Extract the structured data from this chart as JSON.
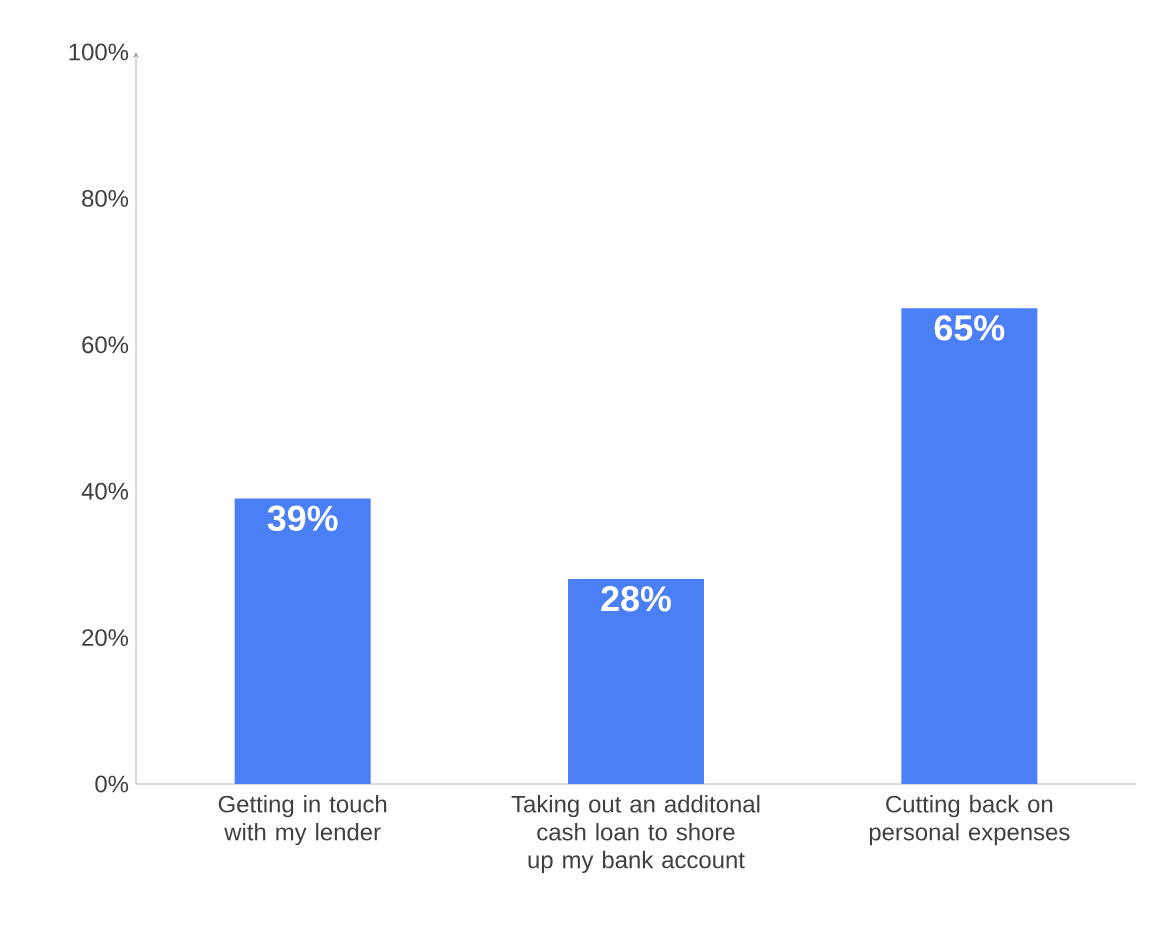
{
  "chart_data": {
    "type": "bar",
    "categories": [
      "Getting in touch with my lender",
      "Taking out an additonal cash loan to shore up my bank account",
      "Cutting back on personal expenses"
    ],
    "values": [
      39,
      28,
      65
    ],
    "color": "#4b7ff6",
    "value_labels": [
      "39%",
      "28%",
      "65%"
    ],
    "ylim": [
      0,
      100
    ],
    "yticks": [
      {
        "value": 0,
        "label": "0%"
      },
      {
        "value": 20,
        "label": "20%"
      },
      {
        "value": 40,
        "label": "40%"
      },
      {
        "value": 60,
        "label": "60%"
      },
      {
        "value": 80,
        "label": "80%"
      },
      {
        "value": 100,
        "label": "100%"
      }
    ],
    "grid": false
  }
}
